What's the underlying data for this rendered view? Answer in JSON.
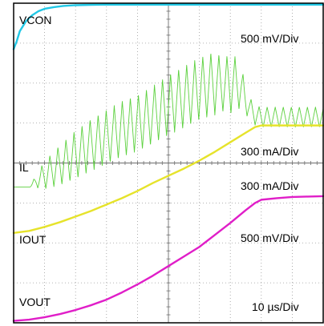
{
  "chart_data": {
    "type": "line",
    "title": "",
    "xlabel": "",
    "ylabel": "",
    "grid": true,
    "grid_divisions": {
      "x": 10,
      "y": 8
    },
    "x_scale": "10 µs/Div",
    "x_range_us": [
      0,
      100
    ],
    "y_range_div": [
      0,
      8
    ],
    "trace_labels": [
      "VCON",
      "IL",
      "IOUT",
      "VOUT"
    ],
    "scale_labels": [
      "500 mV/Div",
      "300 mA/Div",
      "300 mA/Div",
      "500 mV/Div",
      "10 µs/Div"
    ],
    "series": [
      {
        "name": "VCON",
        "color": "#22c8e6",
        "x": [
          0,
          1,
          2,
          4,
          6,
          8,
          10,
          13,
          16,
          20,
          25,
          30,
          40,
          50,
          60,
          70,
          80,
          90,
          100
        ],
        "y": [
          6.85,
          7.05,
          7.3,
          7.55,
          7.7,
          7.8,
          7.86,
          7.9,
          7.93,
          7.95,
          7.96,
          7.965,
          7.965,
          7.965,
          7.965,
          7.965,
          7.965,
          7.965,
          7.965
        ]
      },
      {
        "name": "IL",
        "color": "#5cd13e",
        "x": [
          0,
          1,
          5,
          10,
          15,
          20,
          25,
          30,
          35,
          40,
          45,
          50,
          55,
          60,
          65,
          68,
          70,
          73,
          76,
          78,
          80,
          85,
          90,
          95,
          100
        ],
        "y": [
          3.4,
          3.4,
          3.4,
          3.7,
          3.95,
          4.2,
          4.45,
          4.65,
          4.85,
          5.0,
          5.2,
          5.45,
          5.65,
          5.85,
          6.0,
          5.95,
          6.0,
          5.95,
          5.4,
          5.2,
          5.15,
          5.15,
          5.15,
          5.15,
          5.15
        ],
        "ripple_pp": [
          0,
          0,
          0,
          0.7,
          1.0,
          1.2,
          1.3,
          1.35,
          1.4,
          1.4,
          1.45,
          1.5,
          1.55,
          1.55,
          1.6,
          1.3,
          1.55,
          1.2,
          0.55,
          0.5,
          0.5,
          0.5,
          0.5,
          0.5,
          0.5
        ]
      },
      {
        "name": "IOUT",
        "color": "#e6e32b",
        "x": [
          0,
          5,
          10,
          15,
          20,
          25,
          30,
          35,
          40,
          45,
          50,
          55,
          60,
          65,
          70,
          75,
          78,
          80,
          85,
          90,
          95,
          100
        ],
        "y": [
          2.25,
          2.3,
          2.4,
          2.52,
          2.66,
          2.8,
          2.96,
          3.12,
          3.3,
          3.5,
          3.68,
          3.86,
          4.06,
          4.28,
          4.52,
          4.76,
          4.9,
          4.94,
          4.94,
          4.94,
          4.94,
          4.94
        ]
      },
      {
        "name": "VOUT",
        "color": "#e01ec8",
        "x": [
          0,
          5,
          10,
          15,
          20,
          25,
          30,
          35,
          40,
          45,
          50,
          55,
          60,
          65,
          70,
          75,
          78,
          80,
          85,
          90,
          95,
          100
        ],
        "y": [
          0.05,
          0.08,
          0.14,
          0.22,
          0.32,
          0.44,
          0.58,
          0.76,
          0.96,
          1.18,
          1.42,
          1.66,
          1.9,
          2.2,
          2.5,
          2.82,
          3.0,
          3.08,
          3.12,
          3.15,
          3.16,
          3.17
        ]
      }
    ]
  }
}
